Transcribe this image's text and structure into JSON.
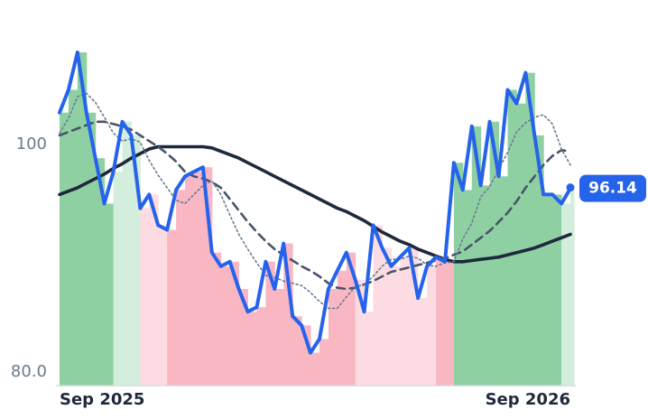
{
  "chart_data": {
    "type": "line",
    "categories": [
      "Sep 2025",
      null,
      null,
      null,
      null,
      null,
      null,
      null,
      null,
      null,
      null,
      null,
      null,
      null,
      null,
      null,
      null,
      null,
      null,
      null,
      null,
      null,
      null,
      null,
      null,
      null,
      null,
      null,
      null,
      null,
      null,
      null,
      null,
      null,
      null,
      null,
      null,
      null,
      null,
      null,
      null,
      null,
      null,
      null,
      null,
      null,
      null,
      null,
      null,
      null,
      null,
      null,
      null,
      null,
      null,
      null,
      null,
      "Sep 2026"
    ],
    "ylim": [
      78.8,
      109.5
    ],
    "yticks": [
      {
        "value": 80,
        "label": "80.0"
      },
      100
    ],
    "series": [
      {
        "color": "#2563eb",
        "style": "solid",
        "width": 4,
        "fill_colors": [
          "#8fd0a3",
          "#8fd0a3",
          "#8fd0a3",
          "#8fd0a3",
          "#8fd0a3",
          "#8fd0a3",
          "#d3eedc",
          "#d3eedc",
          "#d3eedc",
          "#fcdce2",
          "#fcdce2",
          "#fcdce2",
          "#f9b7c4",
          "#f9b7c4",
          "#f9b7c4",
          "#f9b7c4",
          "#f9b7c4",
          "#f9b7c4",
          "#f9b7c4",
          "#f9b7c4",
          "#f9b7c4",
          "#f9b7c4",
          "#f9b7c4",
          "#f9b7c4",
          "#f9b7c4",
          "#f9b7c4",
          "#f9b7c4",
          "#f9b7c4",
          "#f9b7c4",
          "#f9b7c4",
          "#f9b7c4",
          "#f9b7c4",
          "#f9b7c4",
          "#fcdce2",
          "#fcdce2",
          "#fcdce2",
          "#fcdce2",
          "#fcdce2",
          "#fcdce2",
          "#fcdce2",
          "#fcdce2",
          "#fcdce2",
          "#f9b7c4",
          "#f9b7c4",
          "#8fd0a3",
          "#8fd0a3",
          "#8fd0a3",
          "#8fd0a3",
          "#8fd0a3",
          "#8fd0a3",
          "#8fd0a3",
          "#8fd0a3",
          "#8fd0a3",
          "#8fd0a3",
          "#8fd0a3",
          "#8fd0a3",
          "#d3eedc",
          "#d3eedc"
        ],
        "values": [
          102.8,
          104.8,
          108.1,
          102.8,
          98.8,
          94.8,
          97.6,
          102,
          100.8,
          94.4,
          95.6,
          92.9,
          92.5,
          96,
          97.2,
          97.6,
          98,
          90.5,
          89.3,
          89.7,
          87.3,
          85.3,
          85.7,
          89.7,
          87.3,
          91.3,
          84.9,
          84.1,
          81.7,
          82.9,
          87.3,
          88.9,
          90.5,
          88.1,
          85.3,
          92.9,
          90.9,
          89.3,
          90.1,
          90.9,
          86.5,
          89.3,
          90.1,
          89.7,
          98.4,
          96,
          101.6,
          96.4,
          102,
          97.2,
          104.8,
          103.6,
          106.3,
          100.8,
          95.6,
          95.6,
          94.8,
          96.14
        ]
      },
      {
        "color": "#6b7a90",
        "style": "dotted",
        "width": 1.6,
        "values": [
          101,
          102.3,
          104.2,
          104.5,
          103.7,
          102.4,
          101,
          100.3,
          100.5,
          100.2,
          98.6,
          97.3,
          96.2,
          95.1,
          94.8,
          95.6,
          96.4,
          96.8,
          95.6,
          93.8,
          92.1,
          90.8,
          89.6,
          88.5,
          88.3,
          88,
          87.8,
          87.6,
          87,
          86.2,
          85.6,
          85.6,
          86.6,
          87.5,
          87.7,
          88.4,
          89.3,
          89.9,
          89.9,
          90.2,
          90,
          89.4,
          89.3,
          89.6,
          89.7,
          91.7,
          93.1,
          95.4,
          96.3,
          97.8,
          99.3,
          101.1,
          101.9,
          102.4,
          102.6,
          101.8,
          99.6,
          98.2
        ]
      },
      {
        "color": "#475569",
        "style": "dashed",
        "width": 2.6,
        "values": [
          100.8,
          101.1,
          101.4,
          101.7,
          102,
          102,
          101.8,
          101.6,
          101.3,
          100.8,
          100.3,
          99.8,
          99.2,
          98.5,
          97.6,
          97.2,
          97,
          96.7,
          96.2,
          95.2,
          94.2,
          93.2,
          92.3,
          91.5,
          90.8,
          90.3,
          89.8,
          89.3,
          88.9,
          88.4,
          87.8,
          87.4,
          87.3,
          87.4,
          87.7,
          88,
          88.4,
          88.8,
          89,
          89.2,
          89.4,
          89.6,
          89.8,
          90,
          90.3,
          90.6,
          91.2,
          91.8,
          92.4,
          93.2,
          94,
          95,
          96.2,
          97.2,
          98.2,
          99,
          99.5,
          99.4
        ]
      },
      {
        "color": "#1e293b",
        "style": "solid",
        "width": 3.6,
        "values": [
          95.6,
          95.9,
          96.2,
          96.6,
          97,
          97.4,
          97.9,
          98.3,
          98.8,
          99.2,
          99.6,
          99.8,
          99.8,
          99.8,
          99.8,
          99.8,
          99.8,
          99.7,
          99.4,
          99.1,
          98.8,
          98.4,
          98,
          97.6,
          97.2,
          96.8,
          96.4,
          96,
          95.6,
          95.2,
          94.8,
          94.4,
          94.1,
          93.7,
          93.3,
          92.8,
          92.3,
          91.9,
          91.5,
          91.2,
          90.8,
          90.5,
          90.2,
          89.9,
          89.7,
          89.7,
          89.8,
          89.9,
          90,
          90.1,
          90.3,
          90.5,
          90.7,
          90.9,
          91.2,
          91.5,
          91.8,
          92.1
        ]
      }
    ]
  }
}
